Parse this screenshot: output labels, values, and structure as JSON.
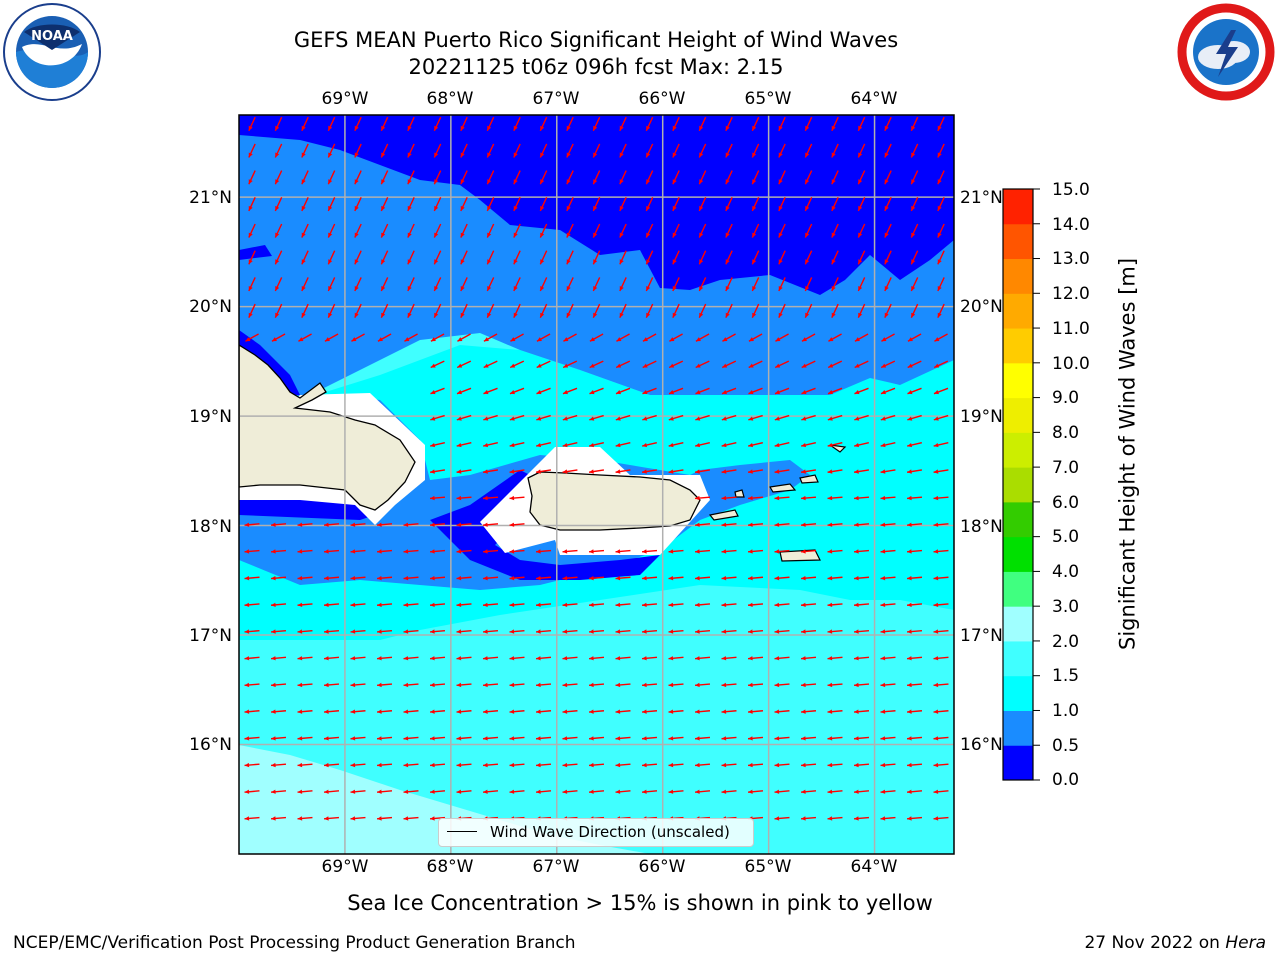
{
  "title": {
    "line1": "GEFS MEAN Puerto Rico Significant Height of Wind Waves",
    "line2": "20221125 t06z 096h fcst   Max: 2.15"
  },
  "map": {
    "lon_labels": [
      "69°W",
      "68°W",
      "67°W",
      "66°W",
      "65°W",
      "64°W"
    ],
    "lon_values": [
      -69,
      -68,
      -67,
      -66,
      -65,
      -64
    ],
    "lat_labels": [
      "21°N",
      "20°N",
      "19°N",
      "18°N",
      "17°N",
      "16°N"
    ],
    "lat_values": [
      21,
      20,
      19,
      18,
      17,
      16
    ],
    "extent": {
      "lon_min": -70,
      "lon_max": -63.25,
      "lat_min": 15,
      "lat_max": 21.75
    },
    "arrow_color": "#ff0000",
    "land_color": "#efedd8"
  },
  "colorbar": {
    "label": "Significant Height of Wind Waves [m]",
    "ticks": [
      "15.0",
      "14.0",
      "13.0",
      "12.0",
      "11.0",
      "10.0",
      "9.0",
      "8.0",
      "7.0",
      "6.0",
      "5.0",
      "4.0",
      "3.0",
      "2.0",
      "1.5",
      "1.0",
      "0.5",
      "0.0"
    ],
    "levels": [
      0.0,
      0.5,
      1.0,
      1.5,
      2.0,
      3.0,
      4.0,
      5.0,
      6.0,
      7.0,
      8.0,
      9.0,
      10.0,
      11.0,
      12.0,
      13.0,
      14.0,
      15.0
    ],
    "colors": [
      "#0000ff",
      "#1a8cff",
      "#00ffff",
      "#40ffff",
      "#a0ffff",
      "#40ff80",
      "#00e000",
      "#33cc00",
      "#aadd00",
      "#ccee00",
      "#eeee00",
      "#ffff00",
      "#ffcc00",
      "#ffaa00",
      "#ff8800",
      "#ff5500",
      "#ff2200"
    ]
  },
  "legend": {
    "label": "Wind Wave Direction (unscaled)"
  },
  "note": "Sea Ice Concentration > 15% is shown in pink to yellow",
  "footer": {
    "left": "NCEP/EMC/Verification Post Processing Product Generation Branch",
    "right_prefix": "27 Nov 2022 on ",
    "right_host": "Hera"
  }
}
